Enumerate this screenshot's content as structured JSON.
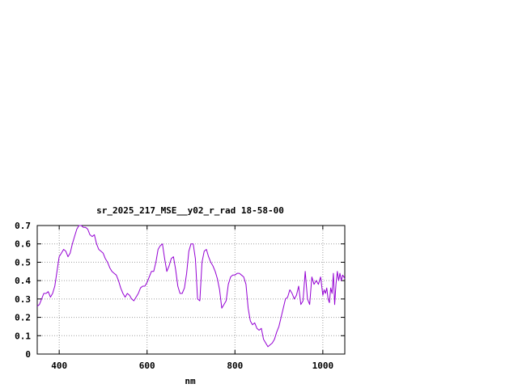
{
  "chart_data": {
    "type": "line",
    "title": "sr_2025_217_MSE__y02_r_rad 18-58-00",
    "xlabel": "nm",
    "ylabel": "",
    "xlim": [
      350,
      1050
    ],
    "ylim": [
      0,
      0.7
    ],
    "xticks": [
      400,
      600,
      800,
      1000
    ],
    "xtick_labels": [
      "400",
      "600",
      "800",
      "1000"
    ],
    "yticks": [
      0,
      0.1,
      0.2,
      0.3,
      0.4,
      0.5,
      0.6,
      0.7
    ],
    "ytick_labels": [
      "0",
      "0.1",
      "0.2",
      "0.3",
      "0.4",
      "0.5",
      "0.6",
      "0.7"
    ],
    "grid": true,
    "line_color": "#9400d3",
    "series": [
      {
        "x": [
          350,
          355,
          360,
          365,
          370,
          375,
          380,
          385,
          390,
          395,
          400,
          405,
          410,
          415,
          420,
          425,
          430,
          435,
          440,
          445,
          450,
          455,
          460,
          465,
          470,
          475,
          480,
          485,
          490,
          495,
          500,
          505,
          510,
          515,
          520,
          525,
          530,
          535,
          540,
          545,
          550,
          555,
          560,
          565,
          570,
          575,
          580,
          585,
          590,
          595,
          600,
          605,
          610,
          615,
          620,
          625,
          630,
          635,
          640,
          645,
          650,
          655,
          660,
          665,
          670,
          675,
          680,
          685,
          690,
          695,
          700,
          705,
          710,
          715,
          720,
          725,
          730,
          735,
          740,
          745,
          750,
          755,
          760,
          765,
          770,
          775,
          780,
          785,
          790,
          795,
          800,
          805,
          810,
          815,
          820,
          825,
          830,
          835,
          840,
          845,
          850,
          855,
          860,
          865,
          870,
          875,
          880,
          885,
          890,
          895,
          900,
          905,
          910,
          915,
          920,
          925,
          930,
          935,
          940,
          945,
          950,
          955,
          960,
          965,
          970,
          975,
          980,
          985,
          990,
          995,
          1000,
          1003,
          1006,
          1009,
          1012,
          1015,
          1018,
          1021,
          1024,
          1027,
          1030,
          1033,
          1036,
          1039,
          1042,
          1045,
          1048,
          1050
        ],
        "y": [
          0.26,
          0.27,
          0.3,
          0.33,
          0.33,
          0.34,
          0.31,
          0.33,
          0.37,
          0.45,
          0.53,
          0.55,
          0.57,
          0.56,
          0.53,
          0.55,
          0.6,
          0.64,
          0.68,
          0.7,
          0.7,
          0.69,
          0.69,
          0.68,
          0.65,
          0.64,
          0.65,
          0.6,
          0.57,
          0.56,
          0.55,
          0.52,
          0.5,
          0.47,
          0.45,
          0.44,
          0.43,
          0.4,
          0.36,
          0.33,
          0.31,
          0.33,
          0.32,
          0.3,
          0.29,
          0.31,
          0.33,
          0.36,
          0.37,
          0.37,
          0.39,
          0.42,
          0.45,
          0.45,
          0.5,
          0.57,
          0.59,
          0.6,
          0.52,
          0.45,
          0.48,
          0.52,
          0.53,
          0.46,
          0.37,
          0.33,
          0.33,
          0.36,
          0.44,
          0.56,
          0.6,
          0.6,
          0.52,
          0.3,
          0.29,
          0.5,
          0.56,
          0.57,
          0.53,
          0.5,
          0.48,
          0.45,
          0.41,
          0.35,
          0.25,
          0.27,
          0.29,
          0.38,
          0.42,
          0.43,
          0.43,
          0.44,
          0.44,
          0.43,
          0.42,
          0.38,
          0.25,
          0.18,
          0.16,
          0.17,
          0.14,
          0.13,
          0.14,
          0.08,
          0.06,
          0.04,
          0.05,
          0.06,
          0.08,
          0.12,
          0.15,
          0.2,
          0.25,
          0.3,
          0.31,
          0.35,
          0.33,
          0.3,
          0.32,
          0.37,
          0.27,
          0.29,
          0.45,
          0.3,
          0.27,
          0.42,
          0.38,
          0.4,
          0.38,
          0.42,
          0.32,
          0.35,
          0.33,
          0.36,
          0.3,
          0.28,
          0.36,
          0.33,
          0.44,
          0.27,
          0.38,
          0.45,
          0.4,
          0.44,
          0.4,
          0.43,
          0.42,
          0.41
        ]
      }
    ]
  }
}
